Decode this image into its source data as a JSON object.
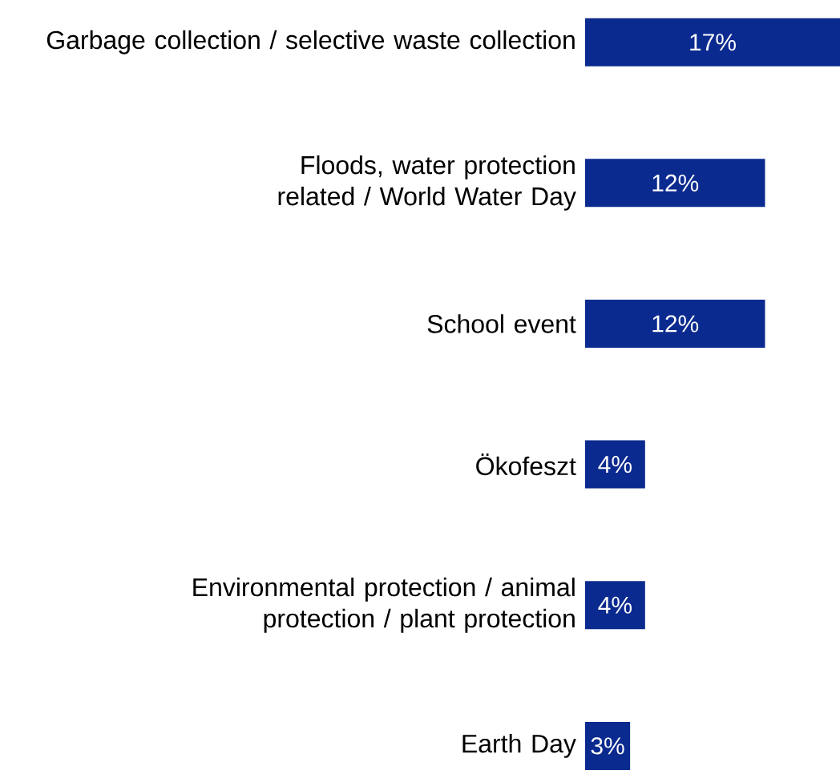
{
  "chart_data": {
    "type": "bar",
    "orientation": "horizontal",
    "categories": [
      "Garbage collection / selective waste collection",
      "Floods, water protection related / World Water Day",
      "School event",
      "Ökofeszt",
      "Environmental protection / animal protection / plant protection",
      "Earth Day"
    ],
    "values": [
      17,
      12,
      12,
      4,
      4,
      3
    ],
    "value_labels": [
      "17%",
      "12%",
      "12%",
      "4%",
      "4%",
      "3%"
    ],
    "color": "#0b2a8f",
    "xlim": [
      0,
      17
    ],
    "tick_labels": "y"
  }
}
